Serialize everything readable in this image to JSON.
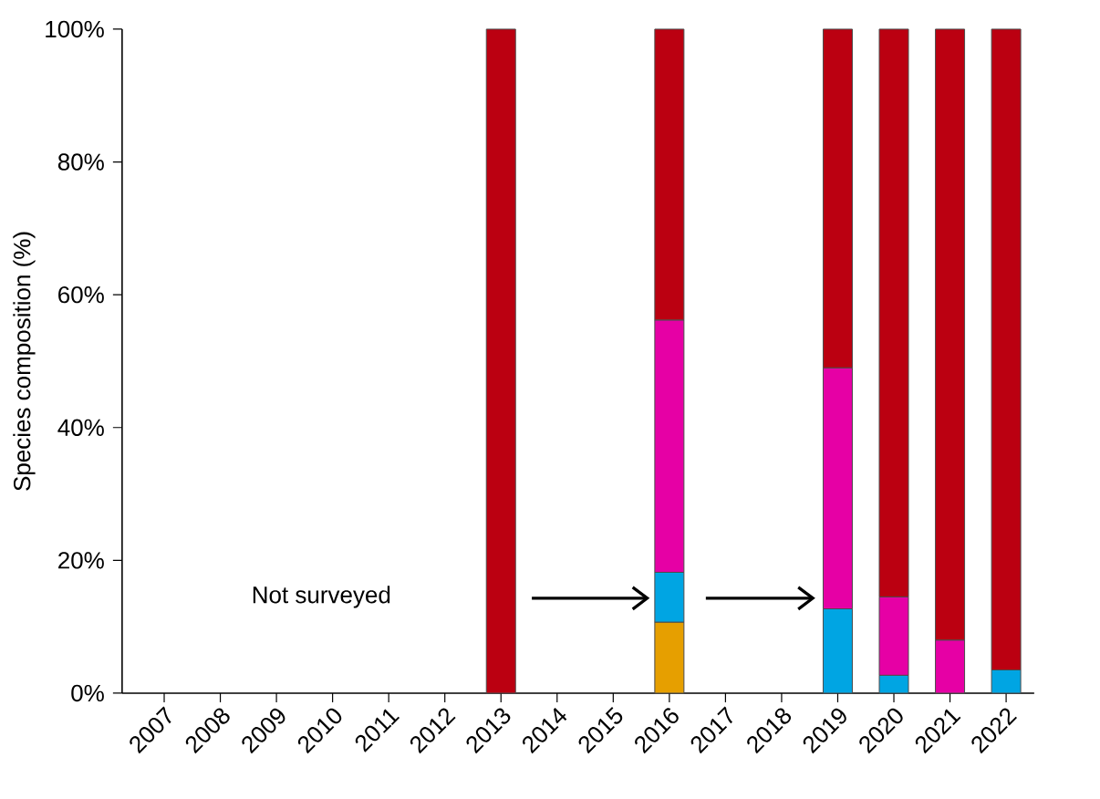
{
  "chart_data": {
    "type": "bar",
    "stacked": true,
    "ylabel": "Species composition (%)",
    "categories": [
      "2007",
      "2008",
      "2009",
      "2010",
      "2011",
      "2012",
      "2013",
      "2014",
      "2015",
      "2016",
      "2017",
      "2018",
      "2019",
      "2020",
      "2021",
      "2022"
    ],
    "series": [
      {
        "color": "#e69f00",
        "values": [
          null,
          null,
          null,
          null,
          null,
          null,
          null,
          null,
          null,
          10.7,
          null,
          null,
          null,
          null,
          null,
          null
        ]
      },
      {
        "color": "#00a5e3",
        "values": [
          null,
          null,
          null,
          null,
          null,
          null,
          null,
          null,
          null,
          7.5,
          null,
          null,
          12.7,
          2.7,
          null,
          3.5
        ]
      },
      {
        "color": "#e600a5",
        "values": [
          null,
          null,
          null,
          null,
          null,
          null,
          null,
          null,
          null,
          38,
          null,
          null,
          36.3,
          11.8,
          8,
          null
        ]
      },
      {
        "color": "#bb0011",
        "values": [
          null,
          null,
          null,
          null,
          null,
          null,
          100,
          null,
          null,
          43.8,
          null,
          null,
          51,
          85.5,
          92,
          96.5
        ]
      }
    ],
    "ylim": [
      0,
      100
    ],
    "yticks": [
      {
        "value": 0,
        "label": "0%"
      },
      {
        "value": 20,
        "label": "20%"
      },
      {
        "value": 40,
        "label": "40%"
      },
      {
        "value": 60,
        "label": "60%"
      },
      {
        "value": 80,
        "label": "80%"
      },
      {
        "value": 100,
        "label": "100%"
      }
    ],
    "annotations": [
      "Not surveyed"
    ]
  }
}
